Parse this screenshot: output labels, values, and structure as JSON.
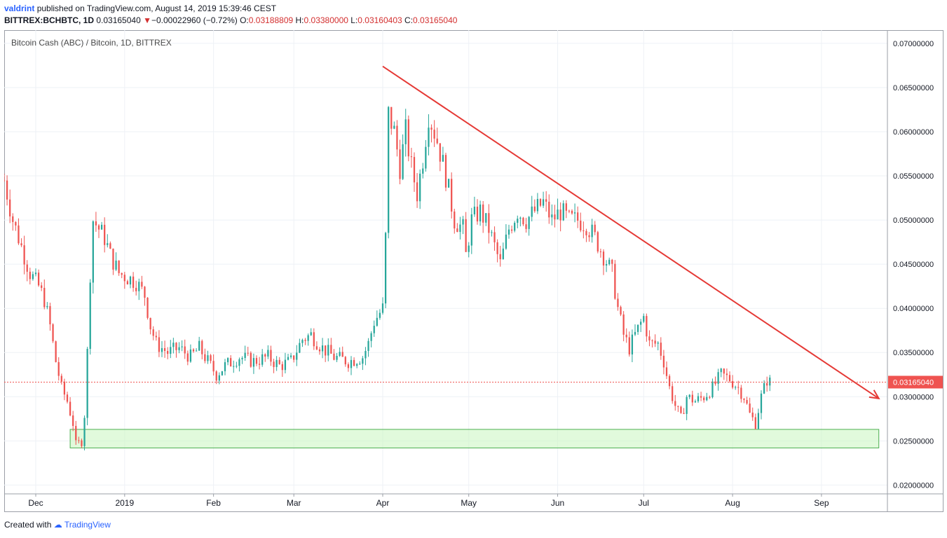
{
  "header": {
    "author": "valdrint",
    "published_text": "published on TradingView.com, August 14, 2019 15:39:46 CEST"
  },
  "quote": {
    "symbol": "BITTREX:BCHBTC, 1D",
    "last": "0.03165040",
    "change_arrow": "▼",
    "change": "−0.00022960 (−0.72%)",
    "o_label": "O:",
    "o": "0.03188809",
    "h_label": "H:",
    "h": "0.03380000",
    "l_label": "L:",
    "l": "0.03160403",
    "c_label": "C:",
    "c": "0.03165040"
  },
  "footer": {
    "created_with": "Created with",
    "brand": "TradingView"
  },
  "colors": {
    "up": "#26a69a",
    "down": "#ef5350",
    "trendline": "#e53935",
    "zone_fill": "#c8f5c0",
    "zone_border": "#4caf50",
    "price_label": "#ef5350"
  },
  "chart_data": {
    "type": "candlestick",
    "title": "Bitcoin Cash (ABC) / Bitcoin, 1D, BITTREX",
    "x_range": [
      "2018-11-20",
      "2019-09-24"
    ],
    "ylim": [
      0.019,
      0.0715
    ],
    "y_ticks": [
      "0.07000000",
      "0.06500000",
      "0.06000000",
      "0.05500000",
      "0.05000000",
      "0.04500000",
      "0.04000000",
      "0.03500000",
      "0.03000000",
      "0.02500000",
      "0.02000000"
    ],
    "x_ticks": [
      {
        "label": "Dec",
        "date": "2018-12-01"
      },
      {
        "label": "2019",
        "date": "2019-01-01"
      },
      {
        "label": "Feb",
        "date": "2019-02-01"
      },
      {
        "label": "Mar",
        "date": "2019-03-01"
      },
      {
        "label": "Apr",
        "date": "2019-04-01"
      },
      {
        "label": "May",
        "date": "2019-05-01"
      },
      {
        "label": "Jun",
        "date": "2019-06-01"
      },
      {
        "label": "Jul",
        "date": "2019-07-01"
      },
      {
        "label": "Aug",
        "date": "2019-08-01"
      },
      {
        "label": "Sep",
        "date": "2019-09-01"
      }
    ],
    "grid": true,
    "last_price": {
      "value": 0.0316504,
      "label": "0.03165040"
    },
    "closes": [
      [
        "2018-11-20",
        0.0545
      ],
      [
        "2018-11-23",
        0.05
      ],
      [
        "2018-11-26",
        0.047
      ],
      [
        "2018-11-29",
        0.044
      ],
      [
        "2018-12-02",
        0.0425
      ],
      [
        "2018-12-04",
        0.041
      ],
      [
        "2018-12-06",
        0.038
      ],
      [
        "2018-12-08",
        0.034
      ],
      [
        "2018-12-10",
        0.031
      ],
      [
        "2018-12-12",
        0.0295
      ],
      [
        "2018-12-14",
        0.027
      ],
      [
        "2018-12-15",
        0.0245
      ],
      [
        "2018-12-17",
        0.025
      ],
      [
        "2018-12-18",
        0.028
      ],
      [
        "2018-12-19",
        0.035
      ],
      [
        "2018-12-20",
        0.044
      ],
      [
        "2018-12-21",
        0.05
      ],
      [
        "2018-12-23",
        0.049
      ],
      [
        "2018-12-25",
        0.048
      ],
      [
        "2018-12-27",
        0.046
      ],
      [
        "2018-12-30",
        0.044
      ],
      [
        "2019-01-02",
        0.0435
      ],
      [
        "2019-01-05",
        0.043
      ],
      [
        "2019-01-08",
        0.0415
      ],
      [
        "2019-01-10",
        0.038
      ],
      [
        "2019-01-12",
        0.036
      ],
      [
        "2019-01-16",
        0.035
      ],
      [
        "2019-01-20",
        0.0355
      ],
      [
        "2019-01-24",
        0.0345
      ],
      [
        "2019-01-27",
        0.0355
      ],
      [
        "2019-01-30",
        0.034
      ],
      [
        "2019-02-02",
        0.0325
      ],
      [
        "2019-02-05",
        0.0335
      ],
      [
        "2019-02-10",
        0.0345
      ],
      [
        "2019-02-15",
        0.034
      ],
      [
        "2019-02-20",
        0.0345
      ],
      [
        "2019-02-24",
        0.0335
      ],
      [
        "2019-02-28",
        0.034
      ],
      [
        "2019-03-04",
        0.0365
      ],
      [
        "2019-03-07",
        0.037
      ],
      [
        "2019-03-11",
        0.0355
      ],
      [
        "2019-03-15",
        0.0345
      ],
      [
        "2019-03-20",
        0.034
      ],
      [
        "2019-03-25",
        0.0345
      ],
      [
        "2019-03-27",
        0.036
      ],
      [
        "2019-03-29",
        0.0385
      ],
      [
        "2019-04-01",
        0.04
      ],
      [
        "2019-04-02",
        0.048
      ],
      [
        "2019-04-03",
        0.062
      ],
      [
        "2019-04-05",
        0.06
      ],
      [
        "2019-04-07",
        0.056
      ],
      [
        "2019-04-09",
        0.06
      ],
      [
        "2019-04-11",
        0.056
      ],
      [
        "2019-04-13",
        0.053
      ],
      [
        "2019-04-15",
        0.057
      ],
      [
        "2019-04-17",
        0.062
      ],
      [
        "2019-04-20",
        0.059
      ],
      [
        "2019-04-23",
        0.055
      ],
      [
        "2019-04-26",
        0.05
      ],
      [
        "2019-04-29",
        0.049
      ],
      [
        "2019-04-30",
        0.046
      ],
      [
        "2019-05-02",
        0.05
      ],
      [
        "2019-05-05",
        0.051
      ],
      [
        "2019-05-08",
        0.049
      ],
      [
        "2019-05-10",
        0.047
      ],
      [
        "2019-05-12",
        0.045
      ],
      [
        "2019-05-15",
        0.049
      ],
      [
        "2019-05-18",
        0.051
      ],
      [
        "2019-05-21",
        0.05
      ],
      [
        "2019-05-24",
        0.051
      ],
      [
        "2019-05-27",
        0.052
      ],
      [
        "2019-05-30",
        0.05
      ],
      [
        "2019-06-02",
        0.051
      ],
      [
        "2019-06-05",
        0.05
      ],
      [
        "2019-06-08",
        0.05
      ],
      [
        "2019-06-11",
        0.0495
      ],
      [
        "2019-06-14",
        0.048
      ],
      [
        "2019-06-17",
        0.046
      ],
      [
        "2019-06-20",
        0.044
      ],
      [
        "2019-06-22",
        0.04
      ],
      [
        "2019-06-24",
        0.037
      ],
      [
        "2019-06-26",
        0.0355
      ],
      [
        "2019-06-28",
        0.037
      ],
      [
        "2019-07-01",
        0.039
      ],
      [
        "2019-07-03",
        0.036
      ],
      [
        "2019-07-06",
        0.036
      ],
      [
        "2019-07-08",
        0.034
      ],
      [
        "2019-07-10",
        0.031
      ],
      [
        "2019-07-12",
        0.029
      ],
      [
        "2019-07-14",
        0.0275
      ],
      [
        "2019-07-16",
        0.03
      ],
      [
        "2019-07-19",
        0.0295
      ],
      [
        "2019-07-22",
        0.03
      ],
      [
        "2019-07-25",
        0.031
      ],
      [
        "2019-07-28",
        0.0325
      ],
      [
        "2019-07-31",
        0.032
      ],
      [
        "2019-08-03",
        0.031
      ],
      [
        "2019-08-05",
        0.03
      ],
      [
        "2019-08-07",
        0.028
      ],
      [
        "2019-08-09",
        0.027
      ],
      [
        "2019-08-11",
        0.03
      ],
      [
        "2019-08-13",
        0.0319
      ],
      [
        "2019-08-14",
        0.03165
      ]
    ],
    "annotations": {
      "trendline": {
        "from": {
          "date": "2019-04-01",
          "price": 0.0674
        },
        "to": {
          "date": "2019-09-21",
          "price": 0.0298
        },
        "arrow": true
      },
      "support_zone": {
        "from_date": "2018-12-13",
        "to_date": "2019-09-21",
        "price_low": 0.0242,
        "price_high": 0.0263
      }
    }
  }
}
